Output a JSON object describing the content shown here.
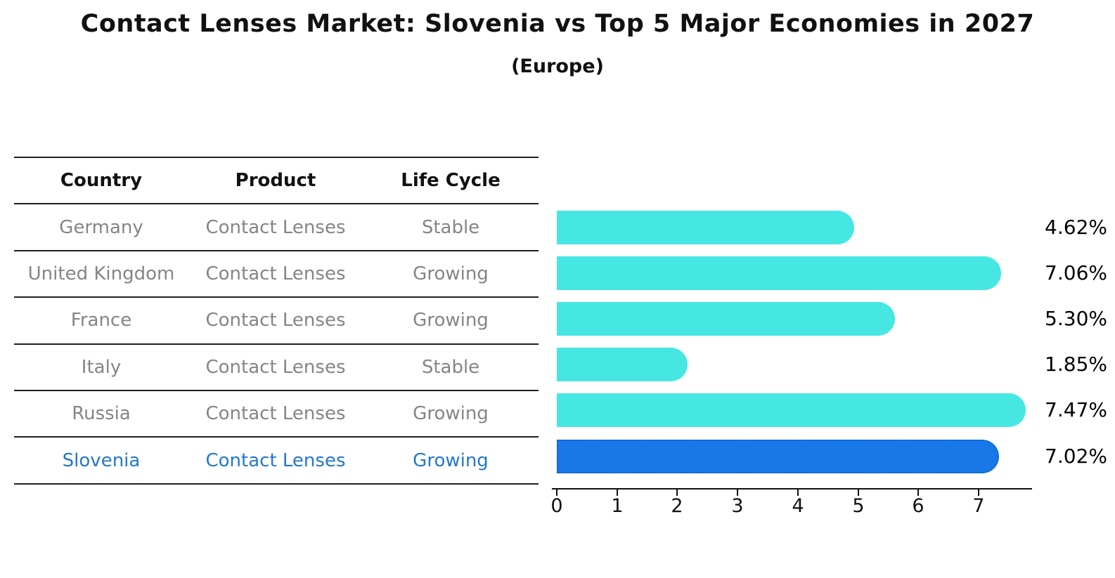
{
  "title": "Contact Lenses Market: Slovenia vs Top 5 Major Economies in 2027",
  "subtitle": "(Europe)",
  "table": {
    "headers": [
      "Country",
      "Product",
      "Life Cycle"
    ],
    "rows": [
      {
        "country": "Germany",
        "product": "Contact Lenses",
        "life_cycle": "Stable"
      },
      {
        "country": "United Kingdom",
        "product": "Contact Lenses",
        "life_cycle": "Growing"
      },
      {
        "country": "France",
        "product": "Contact Lenses",
        "life_cycle": "Growing"
      },
      {
        "country": "Italy",
        "product": "Contact Lenses",
        "life_cycle": "Stable"
      },
      {
        "country": "Russia",
        "product": "Contact Lenses",
        "life_cycle": "Growing"
      },
      {
        "country": "Slovenia",
        "product": "Contact Lenses",
        "life_cycle": "Growing"
      }
    ]
  },
  "chart_data": {
    "type": "bar",
    "orientation": "horizontal",
    "title": "Contact Lenses Market: Slovenia vs Top 5 Major Economies in 2027 (Europe)",
    "categories": [
      "Germany",
      "United Kingdom",
      "France",
      "Italy",
      "Russia",
      "Slovenia"
    ],
    "values": [
      4.62,
      7.06,
      5.3,
      1.85,
      7.47,
      7.02
    ],
    "bar_labels": [
      "4.62%",
      "7.06%",
      "5.30%",
      "1.85%",
      "7.47%",
      "7.02%"
    ],
    "x_ticks": [
      "0",
      "1",
      "2",
      "3",
      "4",
      "5",
      "6",
      "7"
    ],
    "xlim": [
      0,
      7.9
    ],
    "grid": false,
    "legend": false,
    "bar_color": "#46E7E2",
    "highlight_index": 5,
    "highlight_color": "#1878E8",
    "highlight_border_color": "#0D5FD0",
    "row_text_color": "#858585",
    "highlight_text_color": "#2478CE"
  }
}
